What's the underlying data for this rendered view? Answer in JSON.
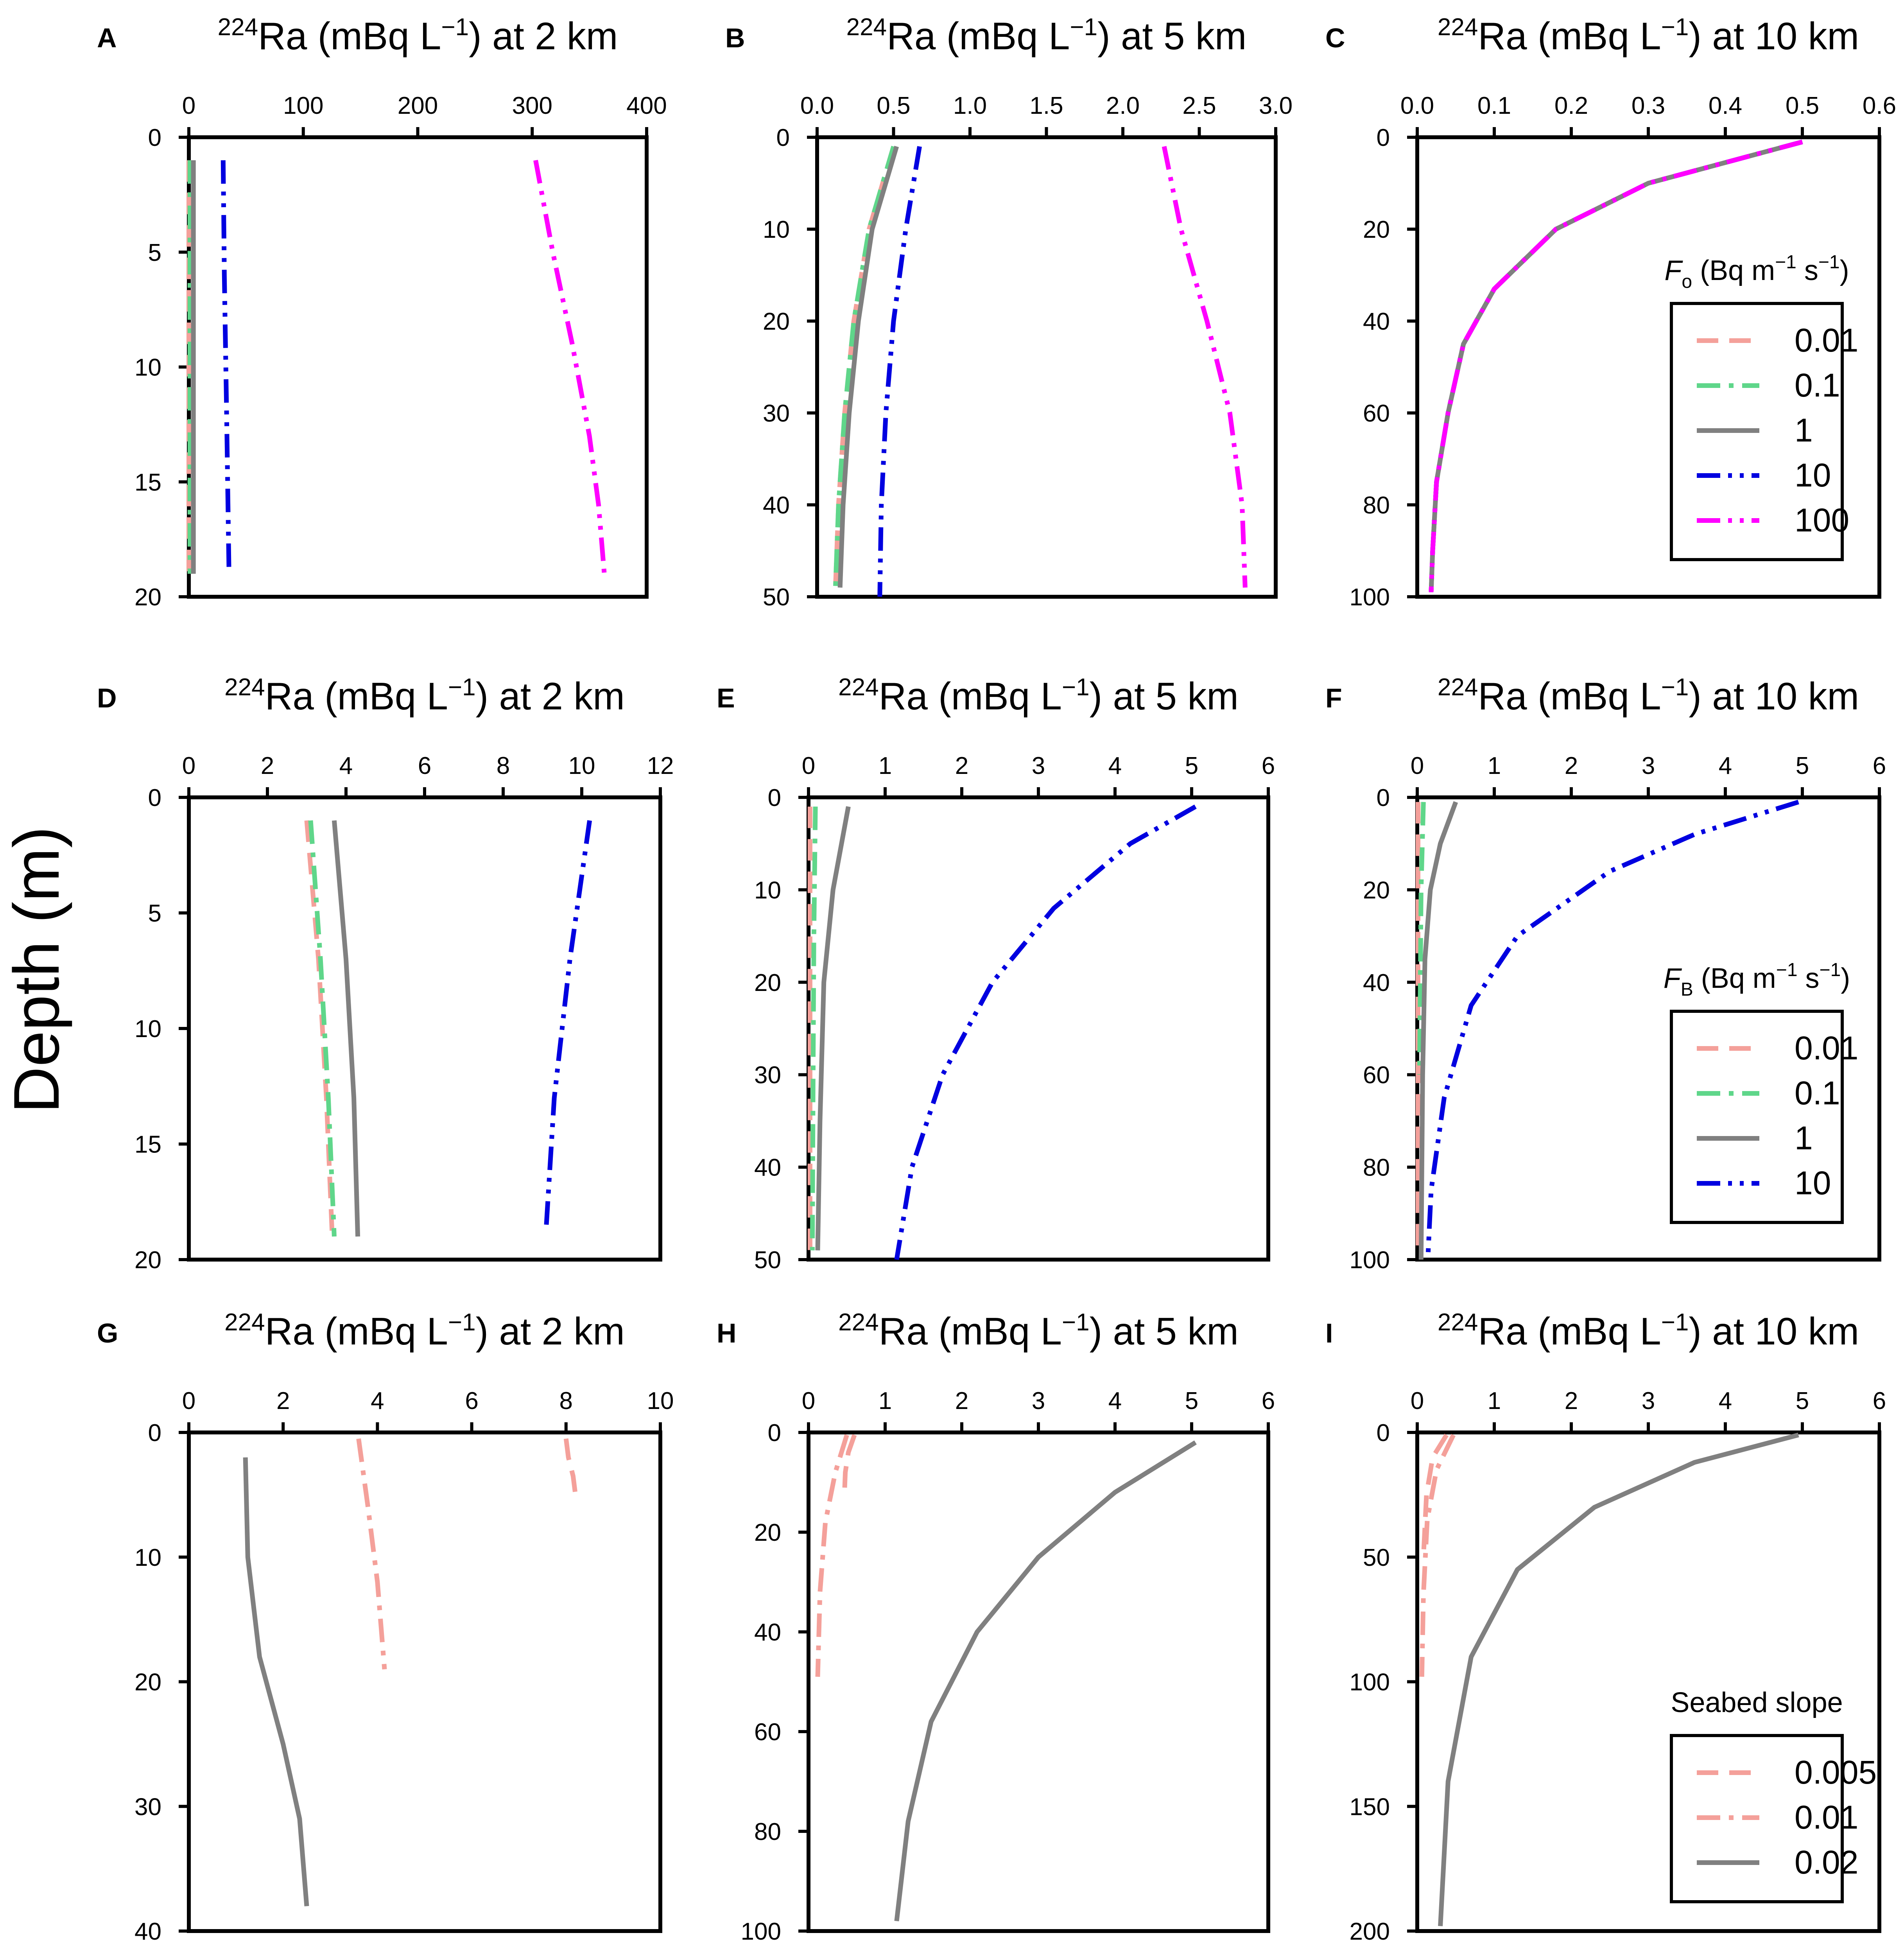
{
  "figure": {
    "ylabel": "Depth (m)"
  },
  "colors": {
    "0.01": "#f4a09a",
    "0.005": "#f4a09a",
    "0.1": "#5fd68a",
    "1": "#808080",
    "0.02": "#808080",
    "10": "#0000e0",
    "100": "#ff00ff",
    "axis": "#000000"
  },
  "chart_data": [
    {
      "panel": "A",
      "type": "line",
      "title_isotope": "224",
      "title_text": "Ra (mBq L",
      "title_exp": "−1",
      "title_tail": ") at 2 km",
      "xlim": [
        0,
        400
      ],
      "xticks": [
        "0",
        "100",
        "200",
        "300",
        "400"
      ],
      "xtick_values": [
        0,
        100,
        200,
        300,
        400
      ],
      "ylim": [
        0,
        20
      ],
      "yticks": [
        "0",
        "5",
        "10",
        "15",
        "20"
      ],
      "ytick_values": [
        0,
        5,
        10,
        15,
        20
      ],
      "series": [
        {
          "name": "0.01",
          "style": "dash",
          "x": [
            0,
            0,
            0
          ],
          "y": [
            1,
            10,
            19
          ]
        },
        {
          "name": "0.1",
          "style": "dashdot",
          "x": [
            1,
            1,
            1
          ],
          "y": [
            1,
            10,
            19
          ]
        },
        {
          "name": "1",
          "style": "solid",
          "x": [
            4,
            4,
            4
          ],
          "y": [
            1,
            10,
            19
          ]
        },
        {
          "name": "10",
          "style": "dashdotdot",
          "x": [
            30,
            31,
            33,
            35
          ],
          "y": [
            1,
            6,
            12,
            18.7
          ]
        },
        {
          "name": "100",
          "style": "dashdotdot",
          "x": [
            303,
            318,
            335,
            350,
            358,
            363
          ],
          "y": [
            1,
            5,
            9,
            13,
            16,
            19
          ]
        }
      ]
    },
    {
      "panel": "B",
      "type": "line",
      "title_isotope": "224",
      "title_text": "Ra (mBq L",
      "title_exp": "−1",
      "title_tail": ") at 5 km",
      "xlim": [
        0,
        3
      ],
      "xticks": [
        "0.0",
        "0.5",
        "1.0",
        "1.5",
        "2.0",
        "2.5",
        "3.0"
      ],
      "xtick_values": [
        0,
        0.5,
        1,
        1.5,
        2,
        2.5,
        3
      ],
      "ylim": [
        0,
        50
      ],
      "yticks": [
        "0",
        "10",
        "20",
        "30",
        "40",
        "50"
      ],
      "ytick_values": [
        0,
        10,
        20,
        30,
        40,
        50
      ],
      "series": [
        {
          "name": "0.01",
          "style": "dash",
          "x": [
            0.5,
            0.34,
            0.24,
            0.18,
            0.14,
            0.12
          ],
          "y": [
            1,
            10,
            20,
            30,
            40,
            49
          ]
        },
        {
          "name": "0.1",
          "style": "dashdot",
          "x": [
            0.5,
            0.34,
            0.24,
            0.18,
            0.14,
            0.12
          ],
          "y": [
            1,
            10,
            20,
            30,
            40,
            49
          ]
        },
        {
          "name": "1",
          "style": "solid",
          "x": [
            0.52,
            0.36,
            0.27,
            0.21,
            0.17,
            0.15
          ],
          "y": [
            1,
            10,
            20,
            30,
            40,
            49
          ]
        },
        {
          "name": "10",
          "style": "dashdotdot",
          "x": [
            0.67,
            0.58,
            0.5,
            0.45,
            0.42,
            0.41
          ],
          "y": [
            1,
            10,
            20,
            30,
            40,
            50
          ]
        },
        {
          "name": "100",
          "style": "dashdotdot",
          "x": [
            2.27,
            2.38,
            2.55,
            2.7,
            2.78,
            2.8
          ],
          "y": [
            1,
            10,
            20,
            30,
            40,
            49
          ]
        }
      ]
    },
    {
      "panel": "C",
      "type": "line",
      "title_isotope": "224",
      "title_text": "Ra (mBq L",
      "title_exp": "−1",
      "title_tail": ") at 10 km",
      "xlim": [
        0,
        0.6
      ],
      "xticks": [
        "0.0",
        "0.1",
        "0.2",
        "0.3",
        "0.4",
        "0.5",
        "0.6"
      ],
      "xtick_values": [
        0,
        0.1,
        0.2,
        0.3,
        0.4,
        0.5,
        0.6
      ],
      "ylim": [
        0,
        100
      ],
      "yticks": [
        "0",
        "20",
        "40",
        "60",
        "80",
        "100"
      ],
      "ytick_values": [
        0,
        20,
        40,
        60,
        80,
        100
      ],
      "legend": {
        "title": "F",
        "title_sub": "o",
        "title_tail": " (Bq m",
        "title_exp1": "−1",
        "title_mid": " s",
        "title_exp2": "−1",
        "title_end": ")",
        "items": [
          "0.01",
          "0.1",
          "1",
          "10",
          "100"
        ]
      },
      "series": [
        {
          "name": "0.01",
          "style": "dash",
          "x": [
            0.5,
            0.3,
            0.18,
            0.1,
            0.06,
            0.04,
            0.025,
            0.02,
            0.018
          ],
          "y": [
            1,
            10,
            20,
            33,
            45,
            60,
            75,
            90,
            99
          ]
        },
        {
          "name": "0.1",
          "style": "dashdot",
          "x": [
            0.5,
            0.3,
            0.18,
            0.1,
            0.06,
            0.04,
            0.025,
            0.02,
            0.018
          ],
          "y": [
            1,
            10,
            20,
            33,
            45,
            60,
            75,
            90,
            99
          ]
        },
        {
          "name": "1",
          "style": "solid",
          "x": [
            0.5,
            0.3,
            0.18,
            0.1,
            0.06,
            0.04,
            0.025,
            0.02,
            0.018
          ],
          "y": [
            1,
            10,
            20,
            33,
            45,
            60,
            75,
            90,
            99
          ]
        },
        {
          "name": "10",
          "style": "dashdotdot",
          "x": [
            0.5,
            0.3,
            0.18,
            0.1,
            0.06,
            0.04,
            0.025,
            0.02,
            0.018
          ],
          "y": [
            1,
            10,
            20,
            33,
            45,
            60,
            75,
            90,
            99
          ]
        },
        {
          "name": "100",
          "style": "dashdotdot",
          "x": [
            0.5,
            0.3,
            0.18,
            0.1,
            0.06,
            0.04,
            0.025,
            0.02,
            0.018
          ],
          "y": [
            1,
            10,
            20,
            33,
            45,
            60,
            75,
            90,
            99
          ]
        }
      ]
    },
    {
      "panel": "D",
      "type": "line",
      "title_isotope": "224",
      "title_text": "Ra (mBq L",
      "title_exp": "−1",
      "title_tail": ") at 2 km",
      "xlim": [
        0,
        12
      ],
      "xticks": [
        "0",
        "2",
        "4",
        "6",
        "8",
        "10",
        "12"
      ],
      "xtick_values": [
        0,
        2,
        4,
        6,
        8,
        10,
        12
      ],
      "ylim": [
        0,
        20
      ],
      "yticks": [
        "0",
        "5",
        "10",
        "15",
        "20"
      ],
      "ytick_values": [
        0,
        5,
        10,
        15,
        20
      ],
      "series": [
        {
          "name": "0.01",
          "style": "dash",
          "x": [
            3.0,
            3.3,
            3.5,
            3.65
          ],
          "y": [
            1,
            7,
            13,
            19
          ]
        },
        {
          "name": "0.1",
          "style": "dashdot",
          "x": [
            3.1,
            3.35,
            3.55,
            3.7
          ],
          "y": [
            1,
            7,
            13,
            19
          ]
        },
        {
          "name": "1",
          "style": "solid",
          "x": [
            3.7,
            4.0,
            4.2,
            4.3
          ],
          "y": [
            1,
            7,
            13,
            19
          ]
        },
        {
          "name": "10",
          "style": "dashdotdot",
          "x": [
            10.2,
            9.7,
            9.3,
            9.1
          ],
          "y": [
            1,
            7,
            13,
            18.5
          ]
        }
      ]
    },
    {
      "panel": "E",
      "type": "line",
      "title_isotope": "224",
      "title_text": "Ra (mBq L",
      "title_exp": "−1",
      "title_tail": ") at 5 km",
      "xlim": [
        0,
        6
      ],
      "xticks": [
        "0",
        "1",
        "2",
        "3",
        "4",
        "5",
        "6"
      ],
      "xtick_values": [
        0,
        1,
        2,
        3,
        4,
        5,
        6
      ],
      "ylim": [
        0,
        50
      ],
      "yticks": [
        "0",
        "10",
        "20",
        "30",
        "40",
        "50"
      ],
      "ytick_values": [
        0,
        10,
        20,
        30,
        40,
        50
      ],
      "series": [
        {
          "name": "0.01",
          "style": "dash",
          "x": [
            0.02,
            0.02,
            0.02,
            0.02
          ],
          "y": [
            1,
            15,
            30,
            49
          ]
        },
        {
          "name": "0.1",
          "style": "dashdot",
          "x": [
            0.09,
            0.07,
            0.06,
            0.05
          ],
          "y": [
            1,
            15,
            30,
            49
          ]
        },
        {
          "name": "1",
          "style": "solid",
          "x": [
            0.52,
            0.32,
            0.2,
            0.15,
            0.12
          ],
          "y": [
            1,
            10,
            20,
            35,
            49
          ]
        },
        {
          "name": "10",
          "style": "dashdotdot",
          "x": [
            5.05,
            4.2,
            3.2,
            2.4,
            1.75,
            1.35,
            1.15
          ],
          "y": [
            1,
            5,
            12,
            20,
            30,
            40,
            50
          ]
        }
      ]
    },
    {
      "panel": "F",
      "type": "line",
      "title_isotope": "224",
      "title_text": "Ra (mBq L",
      "title_exp": "−1",
      "title_tail": ") at 10 km",
      "xlim": [
        0,
        6
      ],
      "xticks": [
        "0",
        "1",
        "2",
        "3",
        "4",
        "5",
        "6"
      ],
      "xtick_values": [
        0,
        1,
        2,
        3,
        4,
        5,
        6
      ],
      "ylim": [
        0,
        100
      ],
      "yticks": [
        "0",
        "20",
        "40",
        "60",
        "80",
        "100"
      ],
      "ytick_values": [
        0,
        20,
        40,
        60,
        80,
        100
      ],
      "legend": {
        "title": "F",
        "title_sub": "B",
        "title_tail": " (Bq m",
        "title_exp1": "−1",
        "title_mid": " s",
        "title_exp2": "−1",
        "title_end": ")",
        "items": [
          "0.01",
          "0.1",
          "1",
          "10"
        ]
      },
      "series": [
        {
          "name": "0.01",
          "style": "dash",
          "x": [
            0.01,
            0.01,
            0.01,
            0.01
          ],
          "y": [
            1,
            30,
            60,
            99
          ]
        },
        {
          "name": "0.1",
          "style": "dashdot",
          "x": [
            0.08,
            0.05,
            0.04,
            0.03
          ],
          "y": [
            1,
            20,
            40,
            60
          ]
        },
        {
          "name": "1",
          "style": "solid",
          "x": [
            0.5,
            0.3,
            0.17,
            0.1,
            0.07,
            0.05
          ],
          "y": [
            1,
            10,
            20,
            35,
            60,
            100
          ]
        },
        {
          "name": "10",
          "style": "dashdotdot",
          "x": [
            4.95,
            3.6,
            2.5,
            1.3,
            0.7,
            0.35,
            0.18,
            0.14
          ],
          "y": [
            1,
            8,
            16,
            30,
            45,
            65,
            85,
            99
          ]
        }
      ]
    },
    {
      "panel": "G",
      "type": "line",
      "title_isotope": "224",
      "title_text": "Ra (mBq L",
      "title_exp": "−1",
      "title_tail": ") at 2 km",
      "xlim": [
        0,
        10
      ],
      "xticks": [
        "0",
        "2",
        "4",
        "6",
        "8",
        "10"
      ],
      "xtick_values": [
        0,
        2,
        4,
        6,
        8,
        10
      ],
      "ylim": [
        0,
        40
      ],
      "yticks": [
        "0",
        "10",
        "20",
        "30",
        "40"
      ],
      "ytick_values": [
        0,
        10,
        20,
        30,
        40
      ],
      "series": [
        {
          "name": "0.005",
          "style": "dash",
          "x": [
            8.0,
            8.05,
            8.15,
            8.2
          ],
          "y": [
            0.5,
            2,
            3.5,
            5
          ]
        },
        {
          "name": "0.01",
          "style": "dashdot",
          "x": [
            3.6,
            3.8,
            4.0,
            4.15
          ],
          "y": [
            0.5,
            6,
            12,
            19
          ]
        },
        {
          "name": "0.02",
          "style": "solid",
          "x": [
            1.2,
            1.25,
            1.5,
            2.0,
            2.35,
            2.5
          ],
          "y": [
            2,
            10,
            18,
            25,
            31,
            38
          ]
        }
      ]
    },
    {
      "panel": "H",
      "type": "line",
      "title_isotope": "224",
      "title_text": "Ra (mBq L",
      "title_exp": "−1",
      "title_tail": ") at 5 km",
      "xlim": [
        0,
        6
      ],
      "xticks": [
        "0",
        "1",
        "2",
        "3",
        "4",
        "5",
        "6"
      ],
      "xtick_values": [
        0,
        1,
        2,
        3,
        4,
        5,
        6
      ],
      "ylim": [
        0,
        100
      ],
      "yticks": [
        "0",
        "20",
        "40",
        "60",
        "80",
        "100"
      ],
      "ytick_values": [
        0,
        20,
        40,
        60,
        80,
        100
      ],
      "series": [
        {
          "name": "0.005",
          "style": "dash",
          "x": [
            0.6,
            0.52,
            0.48,
            0.47
          ],
          "y": [
            0.5,
            4,
            8,
            12
          ]
        },
        {
          "name": "0.01",
          "style": "dashdot",
          "x": [
            0.5,
            0.35,
            0.22,
            0.15,
            0.12
          ],
          "y": [
            0.5,
            8,
            18,
            32,
            49
          ]
        },
        {
          "name": "0.02",
          "style": "solid",
          "x": [
            5.05,
            4.0,
            3.0,
            2.2,
            1.6,
            1.3,
            1.15
          ],
          "y": [
            2,
            12,
            25,
            40,
            58,
            78,
            98
          ]
        }
      ]
    },
    {
      "panel": "I",
      "type": "line",
      "title_isotope": "224",
      "title_text": "Ra (mBq L",
      "title_exp": "−1",
      "title_tail": ") at 10 km",
      "xlim": [
        0,
        6
      ],
      "xticks": [
        "0",
        "1",
        "2",
        "3",
        "4",
        "5",
        "6"
      ],
      "xtick_values": [
        0,
        1,
        2,
        3,
        4,
        5,
        6
      ],
      "ylim": [
        0,
        200
      ],
      "yticks": [
        "0",
        "50",
        "100",
        "150",
        "200"
      ],
      "ytick_values": [
        0,
        50,
        100,
        150,
        200
      ],
      "legend": {
        "title_plain": "Seabed slope",
        "items": [
          "0.005",
          "0.01",
          "0.02"
        ]
      },
      "series": [
        {
          "name": "0.005",
          "style": "dash",
          "x": [
            0.38,
            0.2,
            0.12,
            0.08
          ],
          "y": [
            1,
            10,
            25,
            50
          ]
        },
        {
          "name": "0.01",
          "style": "dashdot",
          "x": [
            0.47,
            0.25,
            0.13,
            0.08,
            0.06
          ],
          "y": [
            1,
            15,
            35,
            65,
            98
          ]
        },
        {
          "name": "0.02",
          "style": "solid",
          "x": [
            4.95,
            3.6,
            2.3,
            1.3,
            0.7,
            0.4,
            0.3
          ],
          "y": [
            1,
            12,
            30,
            55,
            90,
            140,
            198
          ]
        }
      ]
    }
  ]
}
